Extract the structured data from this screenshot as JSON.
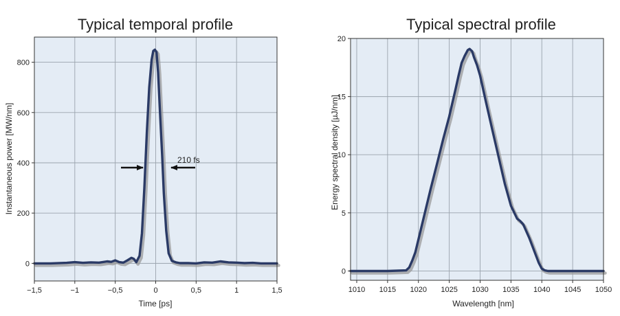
{
  "chart_data": [
    {
      "type": "line",
      "title": "Typical temporal profile",
      "xlabel": "Time [ps]",
      "ylabel": "Instantaneous power [MW/nm]",
      "xlim": [
        -1.5,
        1.5
      ],
      "ylim": [
        -70,
        900
      ],
      "xticks": [
        -1.5,
        -1,
        -0.5,
        0,
        0.5,
        1,
        1.5
      ],
      "xtick_labels": [
        "−1,5",
        "−1",
        "−0,5",
        "0",
        "0,5",
        "1",
        "1,5"
      ],
      "yticks": [
        0,
        200,
        400,
        600,
        800
      ],
      "ytick_labels": [
        "0",
        "200",
        "400",
        "600",
        "800"
      ],
      "grid": true,
      "series": [
        {
          "x": [
            -1.5,
            -1.3,
            -1.1,
            -1.0,
            -0.9,
            -0.8,
            -0.7,
            -0.6,
            -0.55,
            -0.5,
            -0.45,
            -0.4,
            -0.35,
            -0.3,
            -0.27,
            -0.24,
            -0.2,
            -0.17,
            -0.14,
            -0.11,
            -0.08,
            -0.05,
            -0.03,
            -0.01,
            0.0,
            0.01,
            0.03,
            0.05,
            0.08,
            0.1,
            0.13,
            0.16,
            0.2,
            0.25,
            0.3,
            0.4,
            0.5,
            0.6,
            0.7,
            0.8,
            0.9,
            1.0,
            1.1,
            1.2,
            1.3,
            1.5
          ],
          "y": [
            0,
            0,
            2,
            5,
            2,
            4,
            3,
            8,
            6,
            12,
            5,
            3,
            12,
            22,
            18,
            5,
            30,
            120,
            300,
            520,
            700,
            810,
            845,
            850,
            845,
            840,
            760,
            620,
            430,
            280,
            130,
            40,
            10,
            4,
            1,
            1,
            0,
            4,
            3,
            8,
            4,
            3,
            1,
            2,
            0,
            0
          ]
        }
      ],
      "annotations": [
        {
          "text": "210 fs"
        }
      ]
    },
    {
      "type": "line",
      "title": "Typical spectral profile",
      "xlabel": "Wavelength [nm]",
      "ylabel": "Energy spectral density [µJ/nm]",
      "xlim": [
        1009,
        1050
      ],
      "ylim": [
        -0.8,
        20
      ],
      "xticks": [
        1010,
        1015,
        1020,
        1025,
        1030,
        1035,
        1040,
        1045,
        1050
      ],
      "xtick_labels": [
        "1010",
        "1015",
        "1020",
        "1025",
        "1030",
        "1035",
        "1040",
        "1045",
        "1050"
      ],
      "yticks": [
        0,
        5,
        10,
        15,
        20
      ],
      "ytick_labels": [
        "0",
        "5",
        "10",
        "15",
        "20"
      ],
      "grid": true,
      "series": [
        {
          "x": [
            1009,
            1012,
            1015,
            1018,
            1018.5,
            1019,
            1019.5,
            1020,
            1021,
            1022,
            1023,
            1024,
            1025,
            1026,
            1026.5,
            1027,
            1027.5,
            1028,
            1028.3,
            1028.7,
            1029,
            1029.5,
            1030,
            1030.5,
            1031,
            1032,
            1033,
            1034,
            1035,
            1036,
            1036.5,
            1037,
            1037.5,
            1038,
            1039,
            1039.5,
            1040,
            1040.5,
            1041,
            1045,
            1050
          ],
          "y": [
            0,
            0,
            0,
            0.05,
            0.3,
            0.9,
            1.6,
            2.7,
            4.9,
            7.1,
            9.2,
            11.3,
            13.3,
            15.6,
            16.8,
            17.9,
            18.5,
            19.0,
            19.1,
            18.9,
            18.4,
            17.7,
            16.8,
            15.6,
            14.4,
            12.1,
            9.8,
            7.5,
            5.6,
            4.5,
            4.3,
            4.0,
            3.4,
            2.8,
            1.4,
            0.7,
            0.2,
            0.05,
            0,
            0,
            0
          ]
        }
      ]
    }
  ]
}
